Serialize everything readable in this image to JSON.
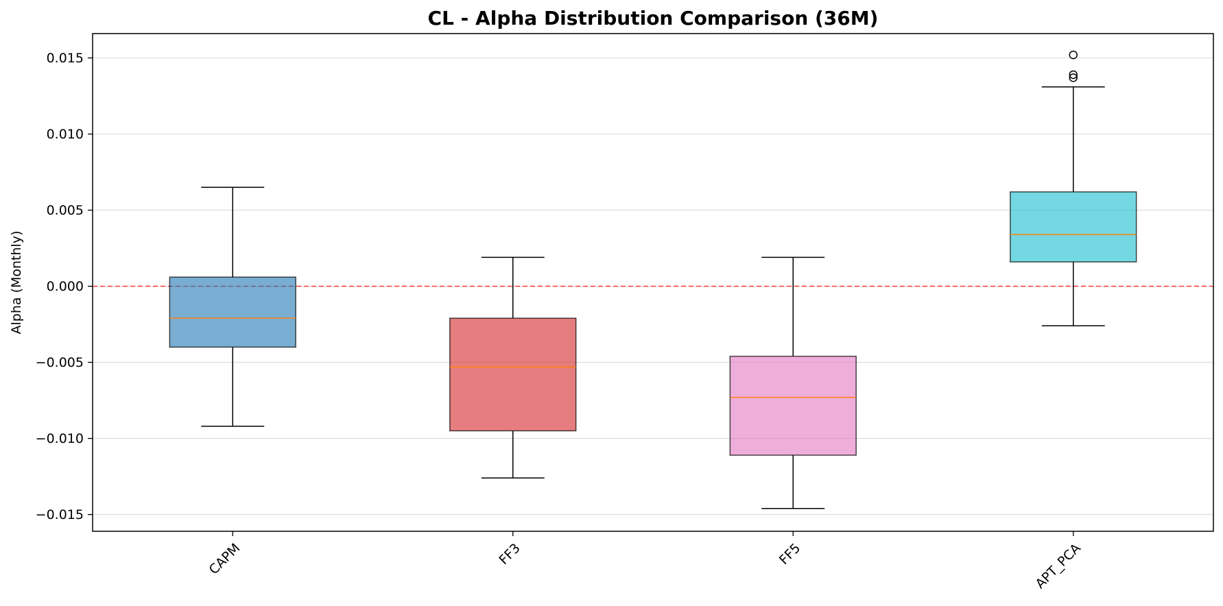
{
  "chart_data": {
    "type": "box",
    "title": "CL - Alpha Distribution Comparison (36M)",
    "xlabel": "",
    "ylabel": "Alpha (Monthly)",
    "ylim": [
      -0.0161,
      0.0166
    ],
    "yticks": [
      -0.015,
      -0.01,
      -0.005,
      0.0,
      0.005,
      0.01,
      0.015
    ],
    "ytick_labels": [
      "−0.015",
      "−0.010",
      "−0.005",
      "0.000",
      "0.005",
      "0.010",
      "0.015"
    ],
    "grid": "horizontal",
    "reference_line": {
      "y": 0.0,
      "color": "#ff0000",
      "style": "dashed"
    },
    "median_color": "#ff7f0e",
    "categories": [
      "CAPM",
      "FF3",
      "FF5",
      "APT_PCA"
    ],
    "boxes": [
      {
        "name": "CAPM",
        "whislo": -0.0092,
        "q1": -0.004,
        "med": -0.0021,
        "q3": 0.0006,
        "whishi": 0.0065,
        "fliers": [],
        "color": "#1f77b4"
      },
      {
        "name": "FF3",
        "whislo": -0.0126,
        "q1": -0.0095,
        "med": -0.0053,
        "q3": -0.0021,
        "whishi": 0.0019,
        "fliers": [],
        "color": "#d62728"
      },
      {
        "name": "FF5",
        "whislo": -0.0146,
        "q1": -0.0111,
        "med": -0.0073,
        "q3": -0.0046,
        "whishi": 0.0019,
        "fliers": [],
        "color": "#e377c2"
      },
      {
        "name": "APT_PCA",
        "whislo": -0.0026,
        "q1": 0.0016,
        "med": 0.0034,
        "q3": 0.0062,
        "whishi": 0.0131,
        "fliers": [
          0.0152,
          0.0139,
          0.0137
        ],
        "color": "#17becf"
      }
    ]
  }
}
